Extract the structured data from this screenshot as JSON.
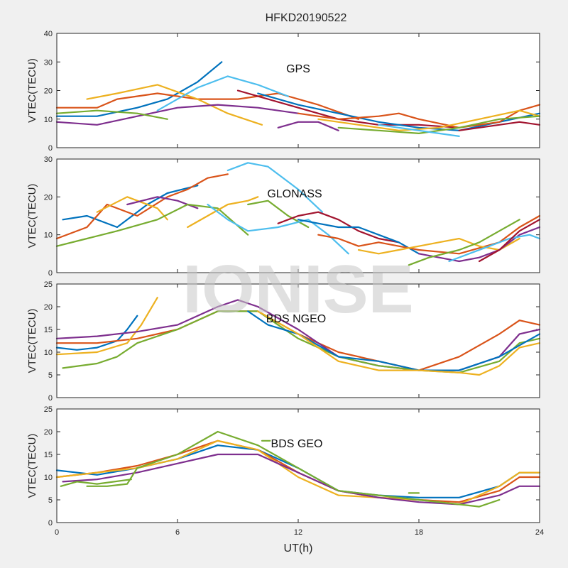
{
  "chart_data": [
    {
      "type": "line",
      "title": "GPS",
      "ylabel": "VTEC(TECU)",
      "xlim": [
        0,
        24
      ],
      "ylim": [
        0,
        40
      ],
      "yticks": [
        "0",
        "10",
        "20",
        "30",
        "40"
      ],
      "series": [
        {
          "color": "#0072BD",
          "x": [
            0,
            2,
            4,
            5.5,
            7,
            8.2
          ],
          "y": [
            11,
            11,
            14,
            17,
            23,
            30
          ]
        },
        {
          "color": "#D95319",
          "x": [
            0,
            2,
            3,
            5,
            7,
            9,
            11,
            13,
            15
          ],
          "y": [
            14,
            14,
            17,
            19,
            17,
            17,
            19,
            15,
            10
          ]
        },
        {
          "color": "#EDB120",
          "x": [
            1.5,
            3,
            5,
            7,
            8.5,
            10.2
          ],
          "y": [
            17,
            19,
            22,
            17,
            12,
            8
          ]
        },
        {
          "color": "#7E2F8E",
          "x": [
            0,
            2,
            4,
            6,
            8,
            10,
            12
          ],
          "y": [
            9,
            8,
            11,
            14,
            15,
            14,
            12
          ]
        },
        {
          "color": "#77AC30",
          "x": [
            0,
            2,
            4,
            5.5
          ],
          "y": [
            12,
            13,
            12,
            10
          ]
        },
        {
          "color": "#4DBEEE",
          "x": [
            5,
            6,
            7,
            8.5,
            10,
            11.5
          ],
          "y": [
            13,
            17,
            21,
            25,
            22,
            18
          ]
        },
        {
          "color": "#A2142F",
          "x": [
            9,
            10,
            12,
            14,
            16,
            18,
            20
          ],
          "y": [
            20,
            18,
            14,
            10,
            8,
            8,
            7
          ]
        },
        {
          "color": "#0072BD",
          "x": [
            10,
            12,
            14,
            16,
            18,
            20,
            22,
            24
          ],
          "y": [
            19,
            15,
            12,
            9,
            7,
            6,
            9,
            12
          ]
        },
        {
          "color": "#D95319",
          "x": [
            12,
            14,
            16,
            17,
            18,
            20,
            22,
            23,
            24
          ],
          "y": [
            12,
            10,
            11,
            12,
            10,
            7,
            9,
            13,
            15
          ]
        },
        {
          "color": "#EDB120",
          "x": [
            13,
            15,
            17,
            19,
            21,
            23,
            24
          ],
          "y": [
            10,
            8,
            6,
            7,
            10,
            13,
            11
          ]
        },
        {
          "color": "#7E2F8E",
          "x": [
            11,
            12,
            13,
            14
          ],
          "y": [
            7,
            9,
            9,
            6
          ]
        },
        {
          "color": "#77AC30",
          "x": [
            14,
            16,
            18,
            20,
            22,
            24
          ],
          "y": [
            7,
            6,
            5,
            7,
            10,
            11
          ]
        },
        {
          "color": "#4DBEEE",
          "x": [
            16,
            17,
            18,
            19,
            20
          ],
          "y": [
            8,
            7,
            6,
            5,
            4
          ]
        },
        {
          "color": "#A2142F",
          "x": [
            20,
            21,
            22,
            23,
            24
          ],
          "y": [
            6,
            7,
            8,
            9,
            8
          ]
        }
      ]
    },
    {
      "type": "line",
      "title": "GLONASS",
      "ylabel": "VTEC(TECU)",
      "xlim": [
        0,
        24
      ],
      "ylim": [
        0,
        30
      ],
      "yticks": [
        "0",
        "10",
        "20",
        "30"
      ],
      "series": [
        {
          "color": "#0072BD",
          "x": [
            0.3,
            1.5,
            3,
            4.5,
            5.5,
            7
          ],
          "y": [
            14,
            15,
            12,
            18,
            21,
            23
          ]
        },
        {
          "color": "#D95319",
          "x": [
            0,
            1.5,
            2.5,
            4,
            5.5,
            6.5,
            7.5,
            8.5
          ],
          "y": [
            9,
            12,
            18,
            15,
            20,
            22,
            25,
            26
          ]
        },
        {
          "color": "#EDB120",
          "x": [
            2,
            3.5,
            5,
            5.5
          ],
          "y": [
            16,
            20,
            17,
            14
          ]
        },
        {
          "color": "#7E2F8E",
          "x": [
            3.5,
            5,
            6,
            7
          ],
          "y": [
            18,
            20,
            19,
            17
          ]
        },
        {
          "color": "#77AC30",
          "x": [
            0,
            1.5,
            3,
            5,
            6.5,
            8,
            9.5
          ],
          "y": [
            7,
            9,
            11,
            14,
            18,
            17,
            10
          ]
        },
        {
          "color": "#4DBEEE",
          "x": [
            8.5,
            9.5,
            10.5,
            12,
            13.2
          ],
          "y": [
            27,
            29,
            28,
            22,
            16
          ]
        },
        {
          "color": "#EDB120",
          "x": [
            6.5,
            7.5,
            8.5,
            9.5,
            10
          ],
          "y": [
            12,
            15,
            18,
            19,
            20
          ]
        },
        {
          "color": "#77AC30",
          "x": [
            9.5,
            10.5,
            11.5,
            12.5
          ],
          "y": [
            18,
            19,
            15,
            12
          ]
        },
        {
          "color": "#4DBEEE",
          "x": [
            7.5,
            8.5,
            9.5,
            11,
            12.5,
            13.5,
            14.5
          ],
          "y": [
            18,
            14,
            11,
            12,
            14,
            10,
            5
          ]
        },
        {
          "color": "#A2142F",
          "x": [
            11,
            12,
            13,
            14,
            15,
            16,
            17
          ],
          "y": [
            13,
            15,
            16,
            14,
            11,
            9,
            8
          ]
        },
        {
          "color": "#0072BD",
          "x": [
            12,
            13,
            14,
            15,
            16,
            17,
            18
          ],
          "y": [
            14,
            13,
            12,
            12,
            10,
            8,
            5
          ]
        },
        {
          "color": "#D95319",
          "x": [
            13,
            14,
            15,
            16,
            17,
            18,
            20,
            22,
            23,
            24
          ],
          "y": [
            10,
            9,
            7,
            8,
            7,
            6,
            5,
            8,
            12,
            15
          ]
        },
        {
          "color": "#EDB120",
          "x": [
            15,
            16,
            17,
            18,
            19,
            20,
            21,
            22,
            23
          ],
          "y": [
            6,
            5,
            6,
            7,
            8,
            9,
            7,
            6,
            9
          ]
        },
        {
          "color": "#7E2F8E",
          "x": [
            18,
            19,
            20,
            21,
            22,
            23,
            24
          ],
          "y": [
            5,
            4,
            3,
            4,
            6,
            10,
            12
          ]
        },
        {
          "color": "#77AC30",
          "x": [
            17.5,
            18.5,
            20,
            21,
            22,
            23
          ],
          "y": [
            2,
            4,
            6,
            8,
            11,
            14
          ]
        },
        {
          "color": "#4DBEEE",
          "x": [
            19.5,
            20.5,
            21.5,
            22.5,
            23.5,
            24
          ],
          "y": [
            3,
            5,
            7,
            9,
            10,
            9
          ]
        },
        {
          "color": "#A2142F",
          "x": [
            21,
            22,
            23,
            24
          ],
          "y": [
            3,
            6,
            11,
            14
          ]
        }
      ]
    },
    {
      "type": "line",
      "title": "BDS NGEO",
      "ylabel": "VTEC(TECU)",
      "xlim": [
        0,
        24
      ],
      "ylim": [
        0,
        25
      ],
      "yticks": [
        "0",
        "5",
        "10",
        "15",
        "20",
        "25"
      ],
      "series": [
        {
          "color": "#0072BD",
          "x": [
            0,
            1,
            2,
            3,
            3.5,
            4
          ],
          "y": [
            11,
            10.5,
            11,
            12.5,
            15,
            18
          ]
        },
        {
          "color": "#D95319",
          "x": [
            0,
            2,
            4,
            6,
            8,
            10,
            12,
            14,
            16,
            18,
            20,
            22,
            23,
            24
          ],
          "y": [
            12,
            12,
            13,
            15,
            19,
            19,
            14,
            10,
            8,
            6,
            9,
            14,
            17,
            16
          ]
        },
        {
          "color": "#EDB120",
          "x": [
            0,
            2,
            3.5,
            4.2,
            5
          ],
          "y": [
            9.5,
            10,
            12,
            16,
            22
          ]
        },
        {
          "color": "#7E2F8E",
          "x": [
            0,
            2,
            4,
            6,
            8,
            9,
            10,
            12,
            14,
            16,
            18,
            20,
            22,
            23,
            24
          ],
          "y": [
            13,
            13.5,
            14.5,
            16,
            20,
            21.5,
            20,
            15,
            9,
            7,
            6,
            6,
            9,
            14,
            15
          ]
        },
        {
          "color": "#77AC30",
          "x": [
            0.3,
            2,
            3,
            4,
            6,
            8,
            10,
            12,
            14,
            16,
            18,
            20,
            22,
            23,
            24
          ],
          "y": [
            6.5,
            7.5,
            9,
            12,
            15,
            19,
            19,
            13,
            9,
            7,
            6,
            5.5,
            8,
            12,
            13
          ]
        },
        {
          "color": "#0072BD",
          "x": [
            9.5,
            10.5,
            12,
            14,
            16,
            18,
            20,
            22,
            24
          ],
          "y": [
            19,
            16,
            14,
            9,
            8,
            6,
            6,
            9,
            14
          ]
        },
        {
          "color": "#EDB120",
          "x": [
            10,
            12,
            14,
            16,
            18,
            20,
            21,
            22,
            23,
            24
          ],
          "y": [
            19,
            14,
            8,
            6,
            6,
            5.5,
            5,
            7,
            11,
            12
          ]
        }
      ]
    },
    {
      "type": "line",
      "title": "BDS GEO",
      "ylabel": "VTEC(TECU)",
      "xlim": [
        0,
        24
      ],
      "ylim": [
        0,
        25
      ],
      "yticks": [
        "0",
        "5",
        "10",
        "15",
        "20",
        "25"
      ],
      "xticks": [
        "0",
        "6",
        "12",
        "18",
        "24"
      ],
      "xlabel": "UT(h)",
      "series": [
        {
          "color": "#0072BD",
          "x": [
            0,
            2,
            4,
            6,
            8,
            10,
            12,
            14,
            16,
            18,
            20,
            22,
            23,
            24
          ],
          "y": [
            11.5,
            10.5,
            12,
            14,
            17,
            16,
            12,
            7,
            6,
            5.5,
            5.5,
            8,
            11,
            11
          ]
        },
        {
          "color": "#D95319",
          "x": [
            0,
            2,
            4,
            6,
            8,
            10,
            12,
            14,
            16,
            18,
            20,
            22,
            23,
            24
          ],
          "y": [
            10,
            11,
            12.5,
            15,
            18,
            16,
            11,
            7,
            5.5,
            5,
            4.5,
            7,
            10,
            10
          ]
        },
        {
          "color": "#EDB120",
          "x": [
            0,
            2,
            4,
            6,
            8,
            10,
            12,
            14,
            16,
            18,
            20,
            22,
            23,
            24
          ],
          "y": [
            10,
            11,
            12,
            14,
            18,
            16,
            10,
            6,
            5.5,
            5,
            4,
            8,
            11,
            11
          ]
        },
        {
          "color": "#7E2F8E",
          "x": [
            0.3,
            2,
            4,
            6,
            8,
            10,
            12,
            14,
            16,
            18,
            20,
            22,
            23,
            24
          ],
          "y": [
            9,
            9.5,
            11,
            13,
            15,
            15,
            11,
            7,
            5.5,
            4.5,
            4,
            6,
            8,
            8
          ]
        },
        {
          "color": "#77AC30",
          "x": [
            1.5,
            2.5,
            3.5,
            4,
            6,
            8,
            10,
            12,
            14,
            16,
            18,
            20,
            21,
            22
          ],
          "y": [
            8,
            8,
            8.5,
            12,
            15,
            20,
            17,
            12,
            7,
            6,
            5,
            4,
            3.5,
            5
          ]
        },
        {
          "color": "#77AC30",
          "x": [
            0.2,
            1,
            2,
            3.7
          ],
          "y": [
            8,
            9,
            8.5,
            9.5
          ]
        },
        {
          "color": "#77AC30",
          "x": [
            10.2,
            10.6
          ],
          "y": [
            18,
            18
          ]
        },
        {
          "color": "#77AC30",
          "x": [
            17.5,
            18
          ],
          "y": [
            6.5,
            6.5
          ]
        }
      ]
    }
  ],
  "figure_title": "HFKD20190522",
  "watermark": "IONISE"
}
